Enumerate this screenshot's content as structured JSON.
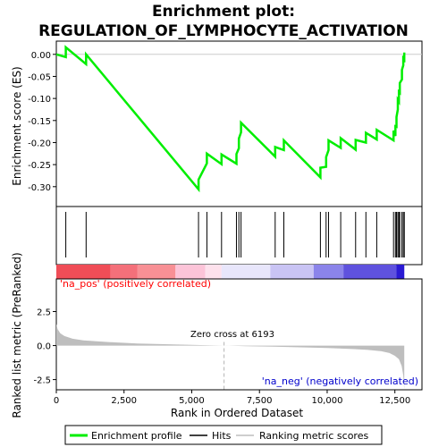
{
  "title_line1": "Enrichment plot:",
  "title_line2": "REGULATION_OF_LYMPHOCYTE_ACTIVATION",
  "colors": {
    "enrichment": "#00ee00",
    "hits": "#000000",
    "ranking": "#bebebe",
    "pos_label": "#ff0000",
    "neg_label": "#0000cc",
    "zero_cross": "#b3b3b3"
  },
  "chart_data": {
    "type": "line",
    "x_range": [
      0,
      13500
    ],
    "x_ticks": [
      0,
      2500,
      5000,
      7500,
      10000,
      12500
    ],
    "x_tick_labels": [
      "0",
      "2,500",
      "5,000",
      "7,500",
      "10,000",
      "12,500"
    ],
    "xlabel": "Rank in Ordered Dataset",
    "n_genes": 12848,
    "es_panel": {
      "ylabel": "Enrichment score (ES)",
      "ylim": [
        -0.345,
        0.03
      ],
      "y_ticks": [
        0.0,
        -0.05,
        -0.1,
        -0.15,
        -0.2,
        -0.25,
        -0.3
      ],
      "y_tick_labels": [
        "0.00",
        "-0.05",
        "-0.10",
        "-0.15",
        "-0.20",
        "-0.25",
        "-0.30"
      ],
      "line_start": [
        0,
        0.0
      ],
      "hits": [
        [
          350,
          0.016
        ],
        [
          1100,
          0.0
        ],
        [
          5250,
          -0.284
        ],
        [
          5560,
          -0.225
        ],
        [
          6100,
          -0.227
        ],
        [
          6650,
          -0.226
        ],
        [
          6740,
          -0.191
        ],
        [
          6820,
          -0.155
        ],
        [
          8080,
          -0.21
        ],
        [
          8400,
          -0.195
        ],
        [
          9750,
          -0.257
        ],
        [
          9960,
          -0.233
        ],
        [
          10050,
          -0.195
        ],
        [
          10500,
          -0.19
        ],
        [
          11050,
          -0.194
        ],
        [
          11430,
          -0.178
        ],
        [
          11830,
          -0.171
        ],
        [
          12450,
          -0.173
        ],
        [
          12520,
          -0.163
        ],
        [
          12560,
          -0.142
        ],
        [
          12610,
          -0.103
        ],
        [
          12650,
          -0.085
        ],
        [
          12680,
          -0.065
        ],
        [
          12760,
          -0.035
        ],
        [
          12810,
          -0.003
        ],
        [
          12848,
          0.004
        ]
      ]
    },
    "hit_ranks": [
      350,
      1100,
      5250,
      5560,
      6100,
      6650,
      6740,
      6820,
      8080,
      8400,
      9750,
      9960,
      10050,
      10500,
      11050,
      11430,
      11830,
      12450,
      12520,
      12560,
      12610,
      12650,
      12680,
      12760,
      12810,
      12848
    ],
    "metric_panel": {
      "ylabel": "Ranked list metric (PreRanked)",
      "ylim": [
        -3.25,
        4.9
      ],
      "y_ticks": [
        2.5,
        0.0,
        -2.5
      ],
      "y_tick_labels": [
        "2.5",
        "0.0",
        "-2.5"
      ],
      "profile": [
        [
          0,
          1.6
        ],
        [
          50,
          1.2
        ],
        [
          150,
          0.9
        ],
        [
          300,
          0.7
        ],
        [
          600,
          0.5
        ],
        [
          1000,
          0.38
        ],
        [
          2000,
          0.25
        ],
        [
          3000,
          0.15
        ],
        [
          4000,
          0.1
        ],
        [
          5000,
          0.05
        ],
        [
          6193,
          0.0
        ],
        [
          7000,
          -0.04
        ],
        [
          8000,
          -0.08
        ],
        [
          9000,
          -0.13
        ],
        [
          10000,
          -0.18
        ],
        [
          11000,
          -0.26
        ],
        [
          11500,
          -0.32
        ],
        [
          12000,
          -0.42
        ],
        [
          12300,
          -0.55
        ],
        [
          12500,
          -0.75
        ],
        [
          12650,
          -1.0
        ],
        [
          12750,
          -1.5
        ],
        [
          12810,
          -2.2
        ],
        [
          12848,
          -3.2
        ]
      ]
    },
    "zero_cross_rank": 6193,
    "zero_cross_label": "Zero cross at 6193",
    "pos_label": "'na_pos' (positively correlated)",
    "neg_label": "'na_neg' (negatively correlated)",
    "legend": [
      "Enrichment profile",
      "Hits",
      "Ranking metric scores"
    ]
  }
}
